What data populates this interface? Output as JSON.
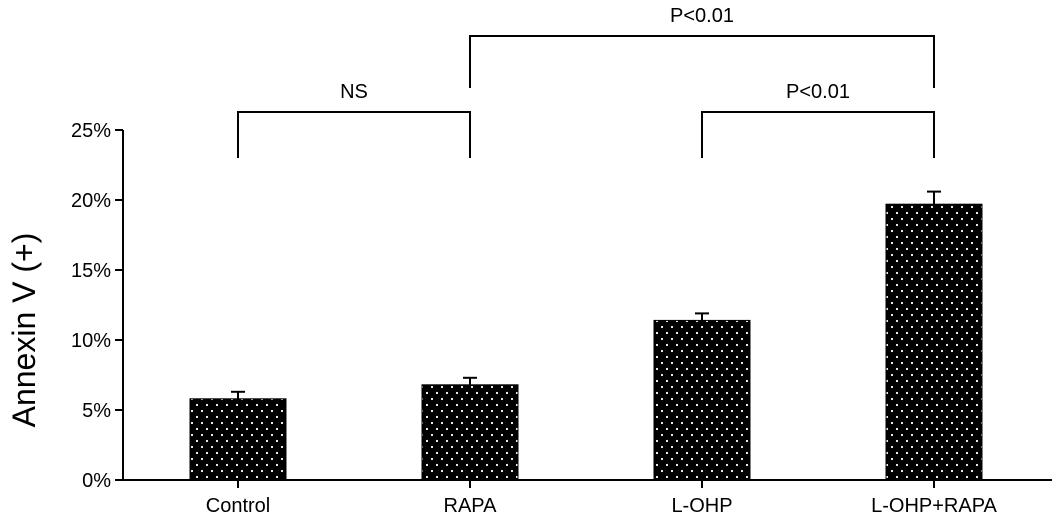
{
  "chart_data": {
    "type": "bar",
    "title": "",
    "xlabel": "",
    "ylabel": "Annexin V (+)",
    "categories": [
      "Control",
      "RAPA",
      "L-OHP",
      "L-OHP+RAPA"
    ],
    "values": [
      5.8,
      6.8,
      11.4,
      19.7
    ],
    "errors": [
      0.5,
      0.5,
      0.5,
      0.9
    ],
    "ylim": [
      0,
      25
    ],
    "yticks": [
      0,
      5,
      10,
      15,
      20,
      25
    ],
    "ytick_labels": [
      "0%",
      "5%",
      "10%",
      "15%",
      "20%",
      "25%"
    ],
    "bar_fill": "#000000",
    "bar_pattern": "white-dot",
    "grid": false,
    "annotations": [
      {
        "label": "NS",
        "from": 0,
        "to": 1,
        "level": 1
      },
      {
        "label": "P<0.01",
        "from": 2,
        "to": 3,
        "level": 1
      },
      {
        "label": "P<0.01",
        "from": 1,
        "to": 3,
        "level": 2
      }
    ]
  }
}
